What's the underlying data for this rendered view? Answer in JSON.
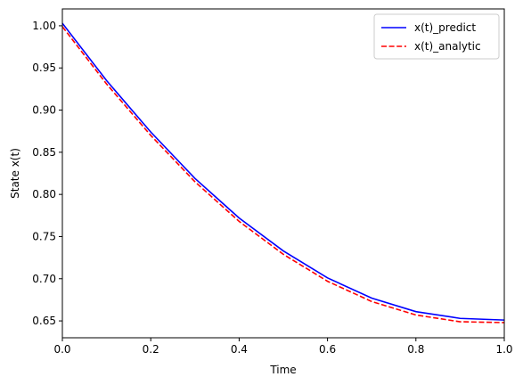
{
  "chart_data": {
    "type": "line",
    "title": "",
    "xlabel": "Time",
    "ylabel": "State x(t)",
    "xlim": [
      0.0,
      1.0
    ],
    "ylim": [
      0.63,
      1.02
    ],
    "x_ticks": [
      0.0,
      0.2,
      0.4,
      0.6,
      0.8,
      1.0
    ],
    "x_tick_labels": [
      "0.0",
      "0.2",
      "0.4",
      "0.6",
      "0.8",
      "1.0"
    ],
    "y_ticks": [
      0.65,
      0.7,
      0.75,
      0.8,
      0.85,
      0.9,
      0.95,
      1.0
    ],
    "y_tick_labels": [
      "0.65",
      "0.70",
      "0.75",
      "0.80",
      "0.85",
      "0.90",
      "0.95",
      "1.00"
    ],
    "grid": false,
    "legend_position": "top-right",
    "series": [
      {
        "name": "x(t)_predict",
        "color": "#0000ff",
        "style": "solid",
        "x": [
          0.0,
          0.1,
          0.2,
          0.3,
          0.4,
          0.5,
          0.6,
          0.7,
          0.8,
          0.9,
          1.0
        ],
        "y": [
          1.003,
          0.935,
          0.874,
          0.819,
          0.772,
          0.733,
          0.701,
          0.677,
          0.661,
          0.653,
          0.651
        ]
      },
      {
        "name": "x(t)_analytic",
        "color": "#ff0000",
        "style": "dashed",
        "x": [
          0.0,
          0.1,
          0.2,
          0.3,
          0.4,
          0.5,
          0.6,
          0.7,
          0.8,
          0.9,
          1.0
        ],
        "y": [
          0.999,
          0.931,
          0.87,
          0.815,
          0.768,
          0.729,
          0.697,
          0.673,
          0.657,
          0.649,
          0.648
        ]
      }
    ]
  }
}
